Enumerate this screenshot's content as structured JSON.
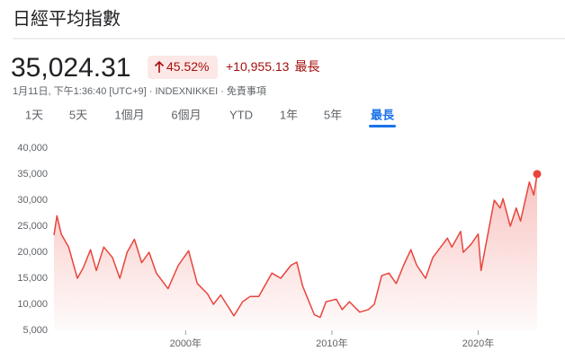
{
  "header": {
    "title": "日經平均指數",
    "price": "35,024.31",
    "change_percent": "45.52%",
    "change": "+10,955.13",
    "period": "最長",
    "subtitle": "1月11日, 下午1:36:40 [UTC+9] · INDEXNIKKEI · 免責事項"
  },
  "tabs": {
    "items": [
      "1天",
      "5天",
      "1個月",
      "6個月",
      "YTD",
      "1年",
      "5年",
      "最長"
    ],
    "selected": 7
  },
  "chart_data": {
    "type": "line",
    "color": "#e8453c",
    "grid": false,
    "x": [
      1991.0,
      1991.2,
      1991.5,
      1992.0,
      1992.6,
      1993.0,
      1993.5,
      1993.9,
      1994.4,
      1995.0,
      1995.5,
      1996.0,
      1996.5,
      1997.0,
      1997.5,
      1998.0,
      1998.8,
      1999.5,
      2000.2,
      2000.8,
      2001.5,
      2001.9,
      2002.4,
      2003.3,
      2003.9,
      2004.4,
      2005.0,
      2005.9,
      2006.5,
      2007.2,
      2007.6,
      2008.0,
      2008.8,
      2009.2,
      2009.6,
      2010.3,
      2010.7,
      2011.2,
      2011.9,
      2012.5,
      2012.9,
      2013.4,
      2013.9,
      2014.4,
      2014.9,
      2015.4,
      2015.8,
      2016.4,
      2016.9,
      2017.9,
      2018.2,
      2018.8,
      2018.98,
      2019.5,
      2020.0,
      2020.2,
      2020.6,
      2021.1,
      2021.5,
      2021.7,
      2022.2,
      2022.6,
      2022.9,
      2023.5,
      2023.8,
      2024.03
    ],
    "values": [
      23300,
      27000,
      23500,
      21000,
      15000,
      17000,
      20500,
      16500,
      21000,
      19000,
      15000,
      20000,
      22500,
      18000,
      20000,
      16000,
      13000,
      17500,
      20300,
      14000,
      12000,
      10000,
      11800,
      7800,
      10500,
      11500,
      11500,
      16000,
      15000,
      17500,
      18100,
      13500,
      8000,
      7500,
      10500,
      11000,
      9000,
      10500,
      8500,
      9000,
      10000,
      15500,
      16000,
      14000,
      17500,
      20500,
      17500,
      15000,
      19000,
      22700,
      21000,
      24000,
      20000,
      21500,
      23500,
      16500,
      22500,
      30000,
      28500,
      30300,
      25000,
      28500,
      26000,
      33500,
      31000,
      35024.31
    ],
    "xlim": [
      1991.0,
      2024.03
    ],
    "xticks": [
      {
        "value": 2000,
        "label": "2000年"
      },
      {
        "value": 2010,
        "label": "2010年"
      },
      {
        "value": 2020,
        "label": "2020年"
      }
    ],
    "ylim": [
      5000,
      40000
    ],
    "yticks": [
      {
        "value": 5000,
        "label": "5,000"
      },
      {
        "value": 10000,
        "label": "10,000"
      },
      {
        "value": 15000,
        "label": "15,000"
      },
      {
        "value": 20000,
        "label": "20,000"
      },
      {
        "value": 25000,
        "label": "25,000"
      },
      {
        "value": 30000,
        "label": "30,000"
      },
      {
        "value": 35000,
        "label": "35,000"
      },
      {
        "value": 40000,
        "label": "40,000"
      }
    ]
  }
}
